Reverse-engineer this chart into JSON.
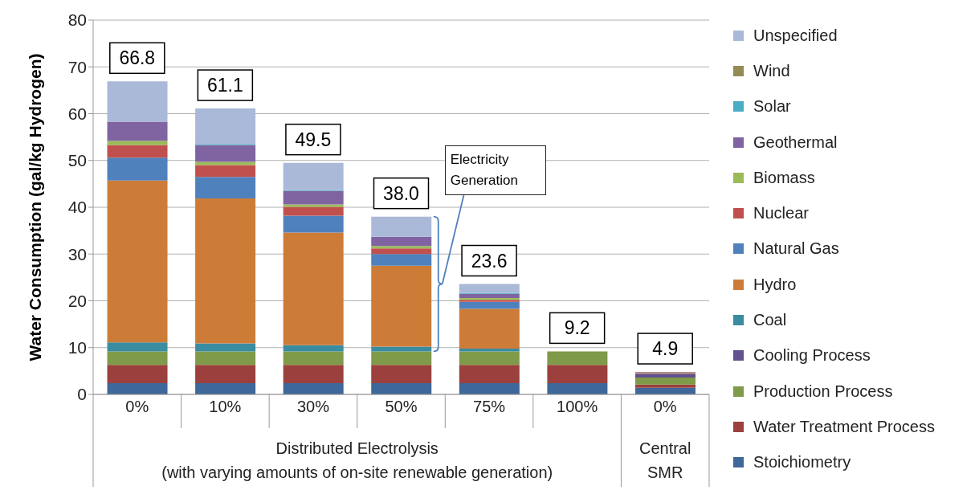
{
  "chart_data": {
    "type": "bar",
    "stacked": true,
    "ylabel": "Water Consumption (gal/kg Hydrogen)",
    "categories": [
      "0%",
      "10%",
      "30%",
      "50%",
      "75%",
      "100%",
      "0%"
    ],
    "series": [
      {
        "name": "Stoichiometry",
        "color": "#3e679a",
        "values": [
          2.4,
          2.4,
          2.4,
          2.4,
          2.4,
          2.4,
          1.4
        ]
      },
      {
        "name": "Water Treatment Process",
        "color": "#9b403d",
        "values": [
          3.9,
          3.9,
          3.9,
          3.9,
          3.9,
          3.9,
          0.7
        ]
      },
      {
        "name": "Production Process",
        "color": "#7f9a48",
        "values": [
          2.9,
          2.9,
          2.9,
          2.9,
          2.9,
          2.9,
          1.5
        ]
      },
      {
        "name": "Cooling Process",
        "color": "#63508e",
        "values": [
          0,
          0,
          0,
          0,
          0,
          0,
          0.8
        ]
      },
      {
        "name": "Coal",
        "color": "#3a8ca0",
        "values": [
          1.9,
          1.7,
          1.3,
          1.0,
          0.6,
          0,
          null
        ]
      },
      {
        "name": "Hydro",
        "color": "#cd7c38",
        "values": [
          34.6,
          31.0,
          24.1,
          17.3,
          8.5,
          0,
          0.2
        ]
      },
      {
        "name": "Natural Gas",
        "color": "#4f81bd",
        "values": [
          4.9,
          4.6,
          3.6,
          2.5,
          1.5,
          0,
          0.1
        ]
      },
      {
        "name": "Nuclear",
        "color": "#c0504d",
        "values": [
          2.7,
          2.5,
          1.9,
          1.2,
          0.4,
          0,
          0.1
        ]
      },
      {
        "name": "Biomass",
        "color": "#9bbb59",
        "values": [
          0.9,
          0.7,
          0.5,
          0.5,
          0.4,
          0,
          0
        ]
      },
      {
        "name": "Geothermal",
        "color": "#8064a2",
        "values": [
          4.1,
          3.6,
          2.9,
          2.0,
          0.9,
          0,
          0
        ]
      },
      {
        "name": "Solar",
        "color": "#4bacc6",
        "values": [
          0,
          0.2,
          0.2,
          0,
          0.2,
          0,
          0
        ]
      },
      {
        "name": "Wind",
        "color": "#948a54",
        "values": [
          0,
          0,
          0,
          0,
          0,
          0,
          0
        ]
      },
      {
        "name": "Unspecified",
        "color": "#aab9d8",
        "values": [
          8.6,
          7.6,
          5.8,
          4.3,
          1.9,
          0,
          0
        ]
      }
    ],
    "totals": [
      "66.8",
      "61.1",
      "49.5",
      "38.0",
      "23.6",
      "9.2",
      "4.9"
    ],
    "ylim": [
      0,
      80
    ],
    "yticks": [
      0,
      10,
      20,
      30,
      40,
      50,
      60,
      70,
      80
    ],
    "grid": "y",
    "legend": "right",
    "annotations": [
      "Electricity Generation",
      "Distributed Electrolysis\n(with varying amounts of on-site renewable generation)",
      "Central\nSMR"
    ]
  }
}
